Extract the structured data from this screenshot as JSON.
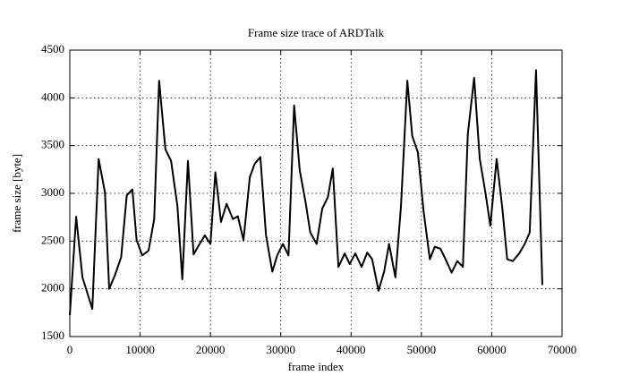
{
  "chart_data": {
    "type": "line",
    "title": "Frame size trace of ARDTalk",
    "xlabel": "frame index",
    "ylabel": "frame size [byte]",
    "color": "#000000",
    "grid": true,
    "x": [
      0,
      900,
      1800,
      3200,
      4100,
      5000,
      5600,
      6400,
      7300,
      8100,
      8900,
      9500,
      10300,
      11200,
      12000,
      12700,
      13600,
      14400,
      15300,
      16000,
      16800,
      17600,
      18300,
      19200,
      20000,
      20700,
      21500,
      22300,
      23200,
      23900,
      24700,
      25600,
      26300,
      27100,
      27900,
      28800,
      29500,
      30300,
      31100,
      31900,
      32700,
      33500,
      34200,
      35100,
      35900,
      36700,
      37400,
      38200,
      39100,
      39800,
      40600,
      41500,
      42300,
      43000,
      43900,
      44700,
      45400,
      46300,
      47100,
      48000,
      48700,
      49500,
      50300,
      51200,
      51900,
      52700,
      53500,
      54300,
      55100,
      55900,
      56600,
      57500,
      58300,
      59100,
      59800,
      60700,
      61500,
      62200,
      63000,
      63900,
      64700,
      65400,
      66300,
      67200
    ],
    "values": [
      1725,
      2755,
      2120,
      1790,
      3360,
      3010,
      2000,
      2140,
      2330,
      2980,
      3040,
      2510,
      2350,
      2400,
      2730,
      4180,
      3460,
      3340,
      2870,
      2100,
      3340,
      2360,
      2450,
      2560,
      2470,
      3220,
      2700,
      2890,
      2730,
      2760,
      2510,
      3170,
      3310,
      3380,
      2560,
      2180,
      2350,
      2470,
      2350,
      3920,
      3240,
      2920,
      2590,
      2470,
      2840,
      2960,
      3260,
      2230,
      2370,
      2260,
      2370,
      2230,
      2380,
      2310,
      1980,
      2180,
      2470,
      2120,
      2870,
      4180,
      3600,
      3430,
      2820,
      2310,
      2440,
      2420,
      2300,
      2170,
      2290,
      2230,
      3620,
      4210,
      3360,
      3010,
      2660,
      3360,
      2850,
      2310,
      2290,
      2370,
      2470,
      2590,
      4290,
      2040
    ],
    "xlim": [
      0,
      70000
    ],
    "ylim": [
      1500,
      4500
    ],
    "xticks": [
      0,
      10000,
      20000,
      30000,
      40000,
      50000,
      60000,
      70000
    ],
    "yticks": [
      1500,
      2000,
      2500,
      3000,
      3500,
      4000,
      4500
    ]
  }
}
